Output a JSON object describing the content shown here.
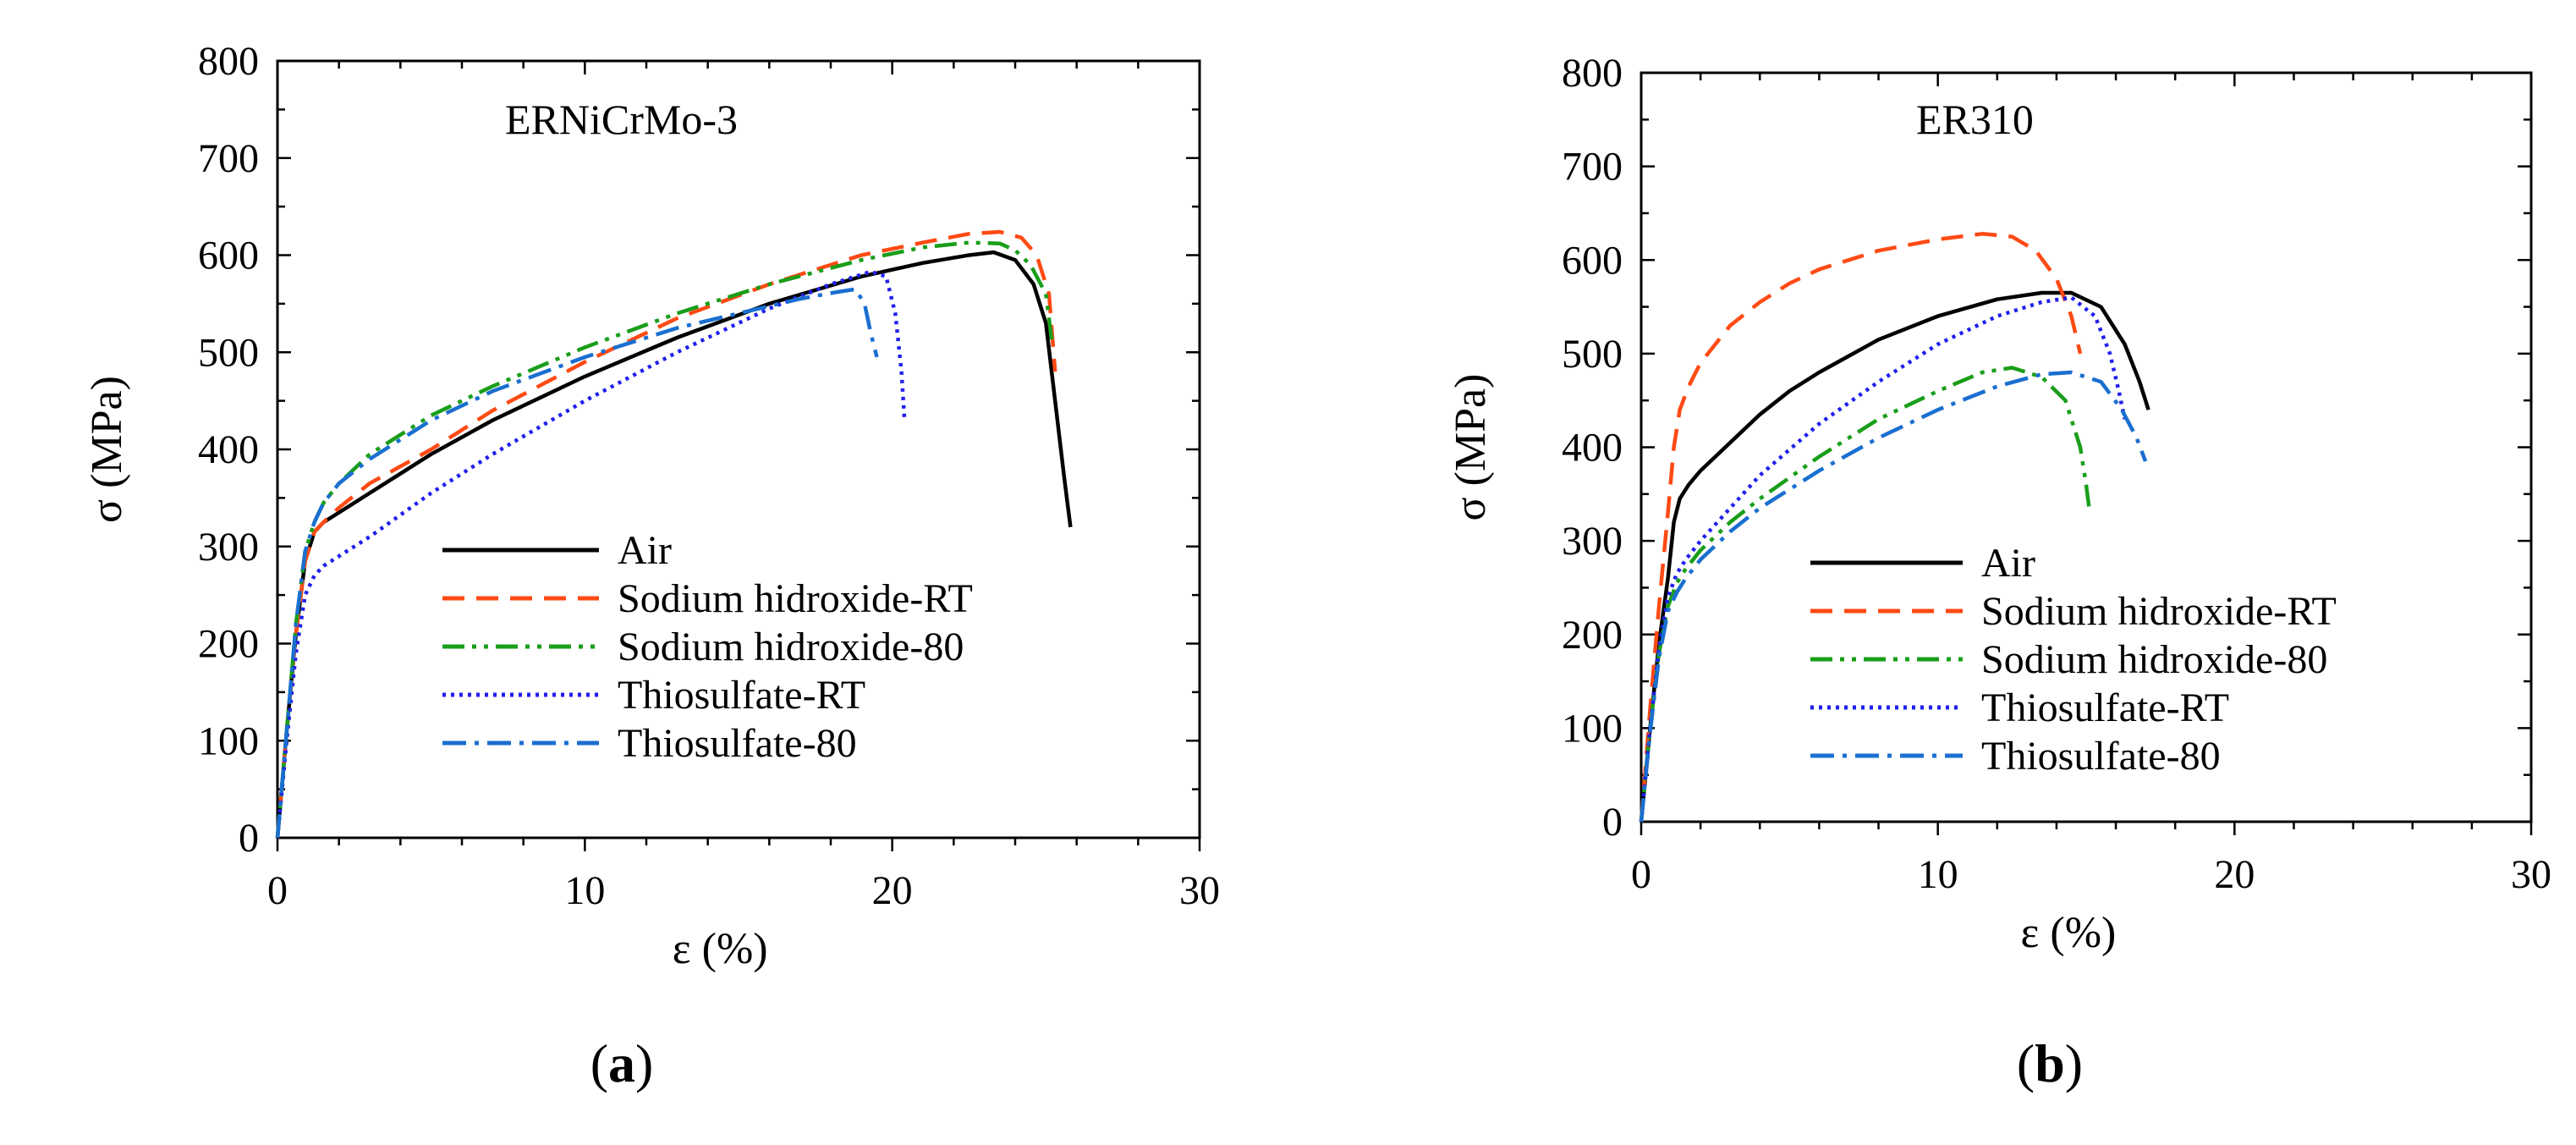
{
  "chart_data": [
    {
      "type": "line",
      "title": "ERNiCrMo-3",
      "xlabel": "ε (%)",
      "ylabel": "σ (MPa)",
      "xlim": [
        0,
        30
      ],
      "ylim": [
        0,
        800
      ],
      "xticks": [
        0,
        10,
        20,
        30
      ],
      "yticks": [
        0,
        100,
        200,
        300,
        400,
        500,
        600,
        700,
        800
      ],
      "legend_position": "bottom-right",
      "caption_letter": "a",
      "series": [
        {
          "name": "Air",
          "color": "#000000",
          "dash": "solid",
          "x": [
            0,
            0.3,
            0.6,
            0.9,
            1.2,
            1.5,
            2,
            3,
            4,
            5,
            7,
            10,
            13,
            16,
            19,
            21,
            22.5,
            23.3,
            24,
            24.6,
            25,
            25.3,
            25.6,
            25.8
          ],
          "y": [
            0,
            110,
            210,
            285,
            315,
            325,
            335,
            355,
            375,
            395,
            430,
            475,
            515,
            550,
            578,
            592,
            600,
            603,
            595,
            570,
            530,
            450,
            370,
            320
          ]
        },
        {
          "name": "Sodium hidroxide-RT",
          "color": "#ff4a14",
          "dash": "dash",
          "x": [
            0,
            0.3,
            0.6,
            0.9,
            1.2,
            1.5,
            2,
            3,
            5,
            7,
            10,
            13,
            16,
            19,
            21,
            22.5,
            23.5,
            24.2,
            24.7,
            25.1,
            25.3
          ],
          "y": [
            0,
            110,
            210,
            285,
            315,
            325,
            340,
            365,
            400,
            440,
            490,
            535,
            570,
            600,
            613,
            622,
            624,
            618,
            600,
            560,
            480
          ]
        },
        {
          "name": "Sodium hidroxide-80",
          "color": "#1a9e1a",
          "dash": "dashdotdot",
          "x": [
            0,
            0.3,
            0.6,
            0.9,
            1.2,
            1.5,
            2,
            3,
            5,
            7,
            10,
            13,
            16,
            19,
            21,
            22.5,
            23.5,
            24,
            24.5,
            25,
            25.2
          ],
          "y": [
            0,
            110,
            220,
            295,
            325,
            345,
            365,
            395,
            435,
            465,
            505,
            540,
            570,
            595,
            608,
            613,
            612,
            605,
            590,
            560,
            510
          ]
        },
        {
          "name": "Thiosulfate-RT",
          "color": "#2020ee",
          "dash": "dot",
          "x": [
            0,
            0.3,
            0.6,
            0.9,
            1.2,
            1.5,
            2,
            3,
            5,
            7,
            10,
            13,
            16,
            18,
            19.3,
            19.8,
            20.1,
            20.3,
            20.4
          ],
          "y": [
            0,
            100,
            190,
            250,
            270,
            280,
            290,
            310,
            355,
            395,
            450,
            500,
            545,
            570,
            583,
            578,
            540,
            480,
            430
          ]
        },
        {
          "name": "Thiosulfate-80",
          "color": "#1a6fd0",
          "dash": "dashdot",
          "x": [
            0,
            0.3,
            0.6,
            0.9,
            1.2,
            1.5,
            2,
            3,
            5,
            7,
            10,
            13,
            15,
            17,
            18.2,
            18.8,
            19.1,
            19.3,
            19.5
          ],
          "y": [
            0,
            110,
            220,
            295,
            325,
            345,
            365,
            390,
            430,
            460,
            495,
            525,
            540,
            555,
            562,
            565,
            550,
            520,
            495
          ]
        }
      ]
    },
    {
      "type": "line",
      "title": "ER310",
      "xlabel": "ε (%)",
      "ylabel": "σ (MPa)",
      "xlim": [
        0,
        30
      ],
      "ylim": [
        0,
        800
      ],
      "xticks": [
        0,
        10,
        20,
        30
      ],
      "yticks": [
        0,
        100,
        200,
        300,
        400,
        500,
        600,
        700,
        800
      ],
      "legend_position": "bottom-right",
      "caption_letter": "b",
      "series": [
        {
          "name": "Air",
          "color": "#000000",
          "dash": "solid",
          "x": [
            0,
            0.3,
            0.6,
            0.9,
            1.1,
            1.3,
            1.6,
            2,
            3,
            4,
            5,
            6,
            8,
            10,
            12,
            13.5,
            14.5,
            15.5,
            16.3,
            16.8,
            17.1
          ],
          "y": [
            0,
            100,
            190,
            260,
            320,
            345,
            360,
            375,
            405,
            435,
            460,
            480,
            515,
            540,
            558,
            565,
            565,
            550,
            510,
            470,
            440
          ]
        },
        {
          "name": "Sodium hidroxide-RT",
          "color": "#ff4a14",
          "dash": "dash",
          "x": [
            0,
            0.3,
            0.6,
            0.9,
            1.1,
            1.3,
            1.6,
            2,
            3,
            4,
            5,
            6,
            8,
            10,
            11.5,
            12.5,
            13.3,
            14,
            14.5,
            14.8
          ],
          "y": [
            0,
            120,
            230,
            330,
            400,
            440,
            465,
            490,
            530,
            555,
            575,
            590,
            610,
            622,
            628,
            625,
            610,
            580,
            540,
            500
          ]
        },
        {
          "name": "Sodium hidroxide-80",
          "color": "#1a9e1a",
          "dash": "dashdotdot",
          "x": [
            0,
            0.3,
            0.6,
            0.9,
            1.2,
            1.5,
            2,
            3,
            4,
            6,
            8,
            10,
            11.5,
            12.5,
            13.5,
            14.3,
            14.8,
            15,
            15.1
          ],
          "y": [
            0,
            100,
            180,
            230,
            255,
            270,
            290,
            320,
            345,
            390,
            430,
            460,
            480,
            485,
            475,
            450,
            400,
            360,
            335
          ]
        },
        {
          "name": "Thiosulfate-RT",
          "color": "#2020ee",
          "dash": "dot",
          "x": [
            0,
            0.3,
            0.6,
            0.9,
            1.2,
            1.5,
            2,
            3,
            4,
            6,
            8,
            10,
            12,
            13.5,
            14.5,
            15.3,
            15.8,
            16.1,
            16.3
          ],
          "y": [
            0,
            100,
            185,
            240,
            265,
            280,
            300,
            335,
            370,
            425,
            470,
            510,
            540,
            555,
            560,
            540,
            500,
            460,
            430
          ]
        },
        {
          "name": "Thiosulfate-80",
          "color": "#1a6fd0",
          "dash": "dashdot",
          "x": [
            0,
            0.3,
            0.6,
            0.9,
            1.2,
            1.5,
            2,
            3,
            4,
            6,
            8,
            10,
            12,
            13.5,
            14.5,
            15.5,
            16.2,
            16.7,
            17
          ],
          "y": [
            0,
            95,
            175,
            225,
            245,
            260,
            280,
            310,
            335,
            375,
            410,
            440,
            465,
            478,
            480,
            470,
            440,
            410,
            385
          ]
        }
      ]
    }
  ]
}
